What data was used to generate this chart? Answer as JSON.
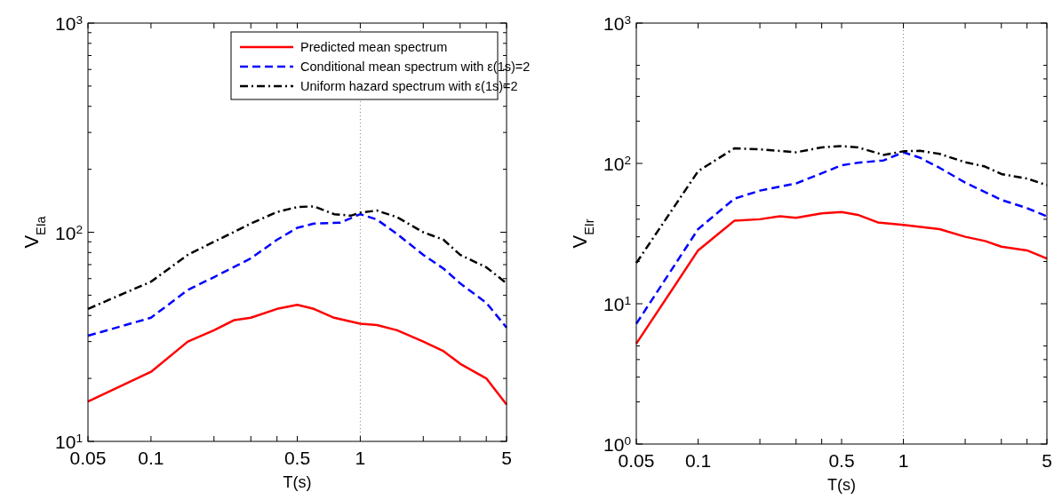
{
  "chart_data": [
    {
      "type": "line",
      "xlabel": "T(s)",
      "ylabel": "V$_{EIa}$",
      "log": "xy",
      "xlim": [
        0.05,
        5
      ],
      "ylim": [
        10,
        1000
      ],
      "xticks": [
        0.05,
        0.1,
        {
          "value": 0.2,
          "label": null
        },
        {
          "value": 0.3,
          "label": null
        },
        {
          "value": 0.4,
          "label": null
        },
        0.5,
        1,
        {
          "value": 2,
          "label": null
        },
        {
          "value": 3,
          "label": null
        },
        {
          "value": 4,
          "label": null
        },
        5
      ],
      "yticks": [
        {
          "value": 10,
          "label": "10$^{1}$"
        },
        {
          "value": 20,
          "label": null
        },
        {
          "value": 30,
          "label": null
        },
        {
          "value": 40,
          "label": null
        },
        {
          "value": 50,
          "label": null
        },
        {
          "value": 60,
          "label": null
        },
        {
          "value": 70,
          "label": null
        },
        {
          "value": 80,
          "label": null
        },
        {
          "value": 90,
          "label": null
        },
        {
          "value": 100,
          "label": "10$^{2}$"
        },
        {
          "value": 200,
          "label": null
        },
        {
          "value": 300,
          "label": null
        },
        {
          "value": 400,
          "label": null
        },
        {
          "value": 500,
          "label": null
        },
        {
          "value": 600,
          "label": null
        },
        {
          "value": 700,
          "label": null
        },
        {
          "value": 800,
          "label": null
        },
        {
          "value": 900,
          "label": null
        },
        {
          "value": 1000,
          "label": "10$^{3}$"
        }
      ],
      "grid": false,
      "legend": "top right",
      "marker": "none",
      "ref_lines": [
        {
          "axis": "x",
          "value": 1,
          "color": "#808080",
          "line_style": "dotted"
        }
      ],
      "series": [
        {
          "name": "Predicted mean spectrum",
          "color": "#ff0000",
          "line_style": "solid",
          "x": [
            0.05,
            0.1,
            0.15,
            0.2,
            0.25,
            0.3,
            0.4,
            0.5,
            0.6,
            0.75,
            1,
            1.2,
            1.5,
            2,
            2.5,
            3,
            4,
            5
          ],
          "values": [
            15.5,
            21.5,
            30,
            34,
            38,
            39,
            43,
            45,
            43,
            39,
            36.5,
            36,
            34,
            30,
            27,
            23.5,
            20,
            15
          ]
        },
        {
          "name": "Conditional mean spectrum with ε(1s)=2",
          "color": "#0000ff",
          "line_style": "dashed",
          "x": [
            0.05,
            0.1,
            0.15,
            0.2,
            0.3,
            0.4,
            0.5,
            0.6,
            0.8,
            1,
            1.2,
            1.5,
            2,
            2.5,
            3,
            4,
            5
          ],
          "values": [
            32,
            39,
            53,
            61,
            75,
            92,
            105,
            110,
            111,
            122,
            115,
            98,
            78,
            67,
            57,
            46,
            35
          ]
        },
        {
          "name": "Uniform hazard spectrum with ε(1s)=2",
          "color": "#000000",
          "line_style": "dashdot",
          "x": [
            0.05,
            0.1,
            0.15,
            0.2,
            0.3,
            0.4,
            0.5,
            0.6,
            0.75,
            0.9,
            1,
            1.2,
            1.5,
            2,
            2.5,
            3,
            4,
            5
          ],
          "values": [
            43,
            58,
            78,
            90,
            110,
            125,
            132,
            133,
            122,
            120,
            124,
            127,
            118,
            100,
            92,
            78,
            68,
            57
          ]
        }
      ]
    },
    {
      "type": "line",
      "xlabel": "T(s)",
      "ylabel": "V$_{EIr}$",
      "log": "xy",
      "xlim": [
        0.05,
        5
      ],
      "ylim": [
        1,
        1000
      ],
      "xticks": [
        0.05,
        0.1,
        {
          "value": 0.2,
          "label": null
        },
        {
          "value": 0.3,
          "label": null
        },
        {
          "value": 0.4,
          "label": null
        },
        0.5,
        1,
        {
          "value": 2,
          "label": null
        },
        {
          "value": 3,
          "label": null
        },
        {
          "value": 4,
          "label": null
        },
        5
      ],
      "yticks": [
        {
          "value": 1,
          "label": "10$^{0}$"
        },
        {
          "value": 2,
          "label": null
        },
        {
          "value": 3,
          "label": null
        },
        {
          "value": 4,
          "label": null
        },
        {
          "value": 5,
          "label": null
        },
        {
          "value": 10,
          "label": "10$^{1}$"
        },
        {
          "value": 20,
          "label": null
        },
        {
          "value": 30,
          "label": null
        },
        {
          "value": 40,
          "label": null
        },
        {
          "value": 50,
          "label": null
        },
        {
          "value": 100,
          "label": "10$^{2}$"
        },
        {
          "value": 200,
          "label": null
        },
        {
          "value": 300,
          "label": null
        },
        {
          "value": 400,
          "label": null
        },
        {
          "value": 500,
          "label": null
        },
        {
          "value": 1000,
          "label": "10$^{3}$"
        }
      ],
      "grid": false,
      "legend": false,
      "marker": "none",
      "ref_lines": [
        {
          "axis": "x",
          "value": 1,
          "color": "#808080",
          "line_style": "dotted"
        }
      ],
      "series": [
        {
          "color": "#ff0000",
          "line_style": "solid",
          "x": [
            0.05,
            0.1,
            0.15,
            0.2,
            0.25,
            0.3,
            0.4,
            0.5,
            0.6,
            0.75,
            1,
            1.5,
            2,
            2.5,
            3,
            4,
            5
          ],
          "values": [
            5.2,
            24,
            39,
            40,
            42,
            41,
            44,
            45,
            43,
            38,
            36.5,
            34,
            30,
            28,
            25.5,
            24,
            21
          ]
        },
        {
          "color": "#0000ff",
          "line_style": "dashed",
          "x": [
            0.05,
            0.1,
            0.15,
            0.2,
            0.3,
            0.4,
            0.5,
            0.6,
            0.8,
            1,
            1.2,
            1.5,
            2,
            3,
            4,
            5
          ],
          "values": [
            7.2,
            34,
            56,
            64,
            72,
            85,
            97,
            101,
            105,
            120,
            110,
            93,
            73,
            55,
            48,
            42
          ]
        },
        {
          "color": "#000000",
          "line_style": "dashdot",
          "x": [
            0.05,
            0.1,
            0.15,
            0.2,
            0.3,
            0.4,
            0.5,
            0.6,
            0.8,
            1,
            1.2,
            1.5,
            2,
            2.5,
            3,
            4,
            5
          ],
          "values": [
            19.5,
            88,
            128,
            126,
            120,
            130,
            133,
            130,
            115,
            122,
            123,
            117,
            102,
            95,
            84,
            78,
            70
          ]
        }
      ]
    }
  ]
}
